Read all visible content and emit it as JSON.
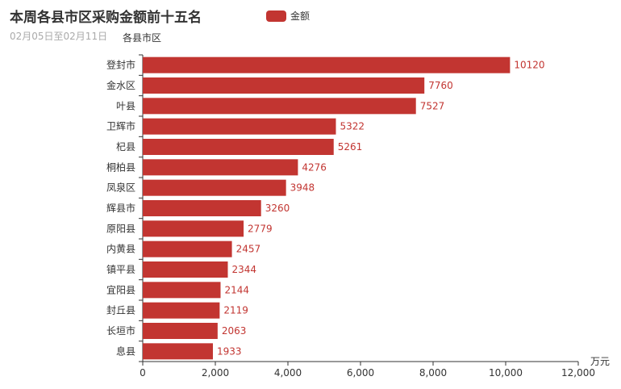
{
  "chart_data": {
    "type": "bar",
    "orientation": "horizontal",
    "title": "本周各县市区采购金额前十五名",
    "subtitle": "02月05日至02月11日",
    "xlabel": "万元",
    "ylabel": "各县市区",
    "categories": [
      "登封市",
      "金水区",
      "叶县",
      "卫辉市",
      "杞县",
      "桐柏县",
      "凤泉区",
      "辉县市",
      "原阳县",
      "内黄县",
      "镇平县",
      "宜阳县",
      "封丘县",
      "长垣市",
      "息县"
    ],
    "series": [
      {
        "name": "金额",
        "values": [
          10120,
          7760,
          7527,
          5322,
          5261,
          4276,
          3948,
          3260,
          2779,
          2457,
          2344,
          2144,
          2119,
          2063,
          1933
        ]
      }
    ],
    "xlim": [
      0,
      12000
    ],
    "xticks": [
      0,
      2000,
      4000,
      6000,
      8000,
      10000,
      12000
    ],
    "xtick_labels": [
      "0",
      "2,000",
      "4,000",
      "6,000",
      "8,000",
      "10,000",
      "12,000"
    ],
    "grid": false,
    "legend_position": "top",
    "colors": {
      "bar": "#c23531",
      "label": "#c23531",
      "axis": "#333333",
      "text": "#333333"
    }
  }
}
